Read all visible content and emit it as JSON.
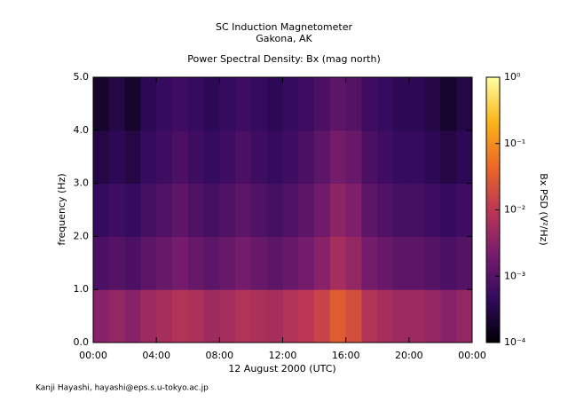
{
  "chart_data": {
    "type": "heatmap",
    "title": "SC Induction Magnetometer",
    "location": "Gakona, AK",
    "subtitle": "Power Spectral Density: Bx (mag north)",
    "x_label": "12 August 2000 (UTC)",
    "y_label": "frequency (Hz)",
    "colorbar_label": "Bx PSD (V²/Hz)",
    "footer": "Kanji Hayashi, hayashi@eps.s.u-tokyo.ac.jp",
    "xlim": [
      0,
      24
    ],
    "xticks": [
      {
        "value": 0,
        "label": "00:00"
      },
      {
        "value": 4,
        "label": "04:00"
      },
      {
        "value": 8,
        "label": "08:00"
      },
      {
        "value": 12,
        "label": "12:00"
      },
      {
        "value": 16,
        "label": "16:00"
      },
      {
        "value": 20,
        "label": "20:00"
      },
      {
        "value": 24,
        "label": "00:00"
      }
    ],
    "ylim": [
      0,
      5
    ],
    "yticks": [
      {
        "value": 0,
        "label": "0.0"
      },
      {
        "value": 1,
        "label": "1.0"
      },
      {
        "value": 2,
        "label": "2.0"
      },
      {
        "value": 3,
        "label": "3.0"
      },
      {
        "value": 4,
        "label": "4.0"
      },
      {
        "value": 5,
        "label": "5.0"
      }
    ],
    "clim": [
      0.0001,
      1
    ],
    "clog": true,
    "cticks": [
      {
        "value": 0.0001,
        "label": "10⁻⁴"
      },
      {
        "value": 0.001,
        "label": "10⁻³"
      },
      {
        "value": 0.01,
        "label": "10⁻²"
      },
      {
        "value": 0.1,
        "label": "10⁻¹"
      },
      {
        "value": 1,
        "label": "10⁰"
      }
    ],
    "colormap": [
      "#000004",
      "#320a5e",
      "#781c6d",
      "#bc3754",
      "#ed6925",
      "#fbb61a",
      "#fcffa4"
    ],
    "xbins": [
      0,
      1,
      2,
      3,
      4,
      5,
      6,
      7,
      8,
      9,
      10,
      11,
      12,
      13,
      14,
      15,
      16,
      17,
      18,
      19,
      20,
      21,
      22,
      23,
      24
    ],
    "ybins": [
      0,
      1,
      2,
      3,
      4,
      5
    ],
    "z": [
      [
        0.003,
        0.004,
        0.003,
        0.005,
        0.006,
        0.008,
        0.007,
        0.005,
        0.006,
        0.008,
        0.007,
        0.006,
        0.008,
        0.01,
        0.015,
        0.03,
        0.02,
        0.008,
        0.006,
        0.005,
        0.005,
        0.004,
        0.003,
        0.004
      ],
      [
        0.0008,
        0.001,
        0.0008,
        0.0012,
        0.0015,
        0.002,
        0.0015,
        0.0012,
        0.0015,
        0.002,
        0.0015,
        0.0012,
        0.0015,
        0.002,
        0.003,
        0.006,
        0.004,
        0.002,
        0.0015,
        0.0012,
        0.0012,
        0.001,
        0.0008,
        0.001
      ],
      [
        0.0005,
        0.0006,
        0.0005,
        0.0007,
        0.0009,
        0.0012,
        0.0009,
        0.0007,
        0.0009,
        0.0012,
        0.0009,
        0.0007,
        0.0009,
        0.0012,
        0.0018,
        0.0035,
        0.0025,
        0.0012,
        0.0009,
        0.0007,
        0.0007,
        0.0006,
        0.0005,
        0.0006
      ],
      [
        0.0003,
        0.0004,
        0.0003,
        0.0005,
        0.0006,
        0.0008,
        0.0006,
        0.0005,
        0.0006,
        0.0008,
        0.0006,
        0.0005,
        0.0006,
        0.0008,
        0.0012,
        0.002,
        0.0015,
        0.0008,
        0.0006,
        0.0005,
        0.0005,
        0.0004,
        0.0003,
        0.0004
      ],
      [
        0.0002,
        0.0003,
        0.0002,
        0.0004,
        0.0005,
        0.0006,
        0.0005,
        0.0004,
        0.0005,
        0.0006,
        0.0005,
        0.0004,
        0.0005,
        0.0006,
        0.0008,
        0.0012,
        0.001,
        0.0006,
        0.0005,
        0.0004,
        0.0004,
        0.0003,
        0.0002,
        0.0003
      ]
    ]
  }
}
